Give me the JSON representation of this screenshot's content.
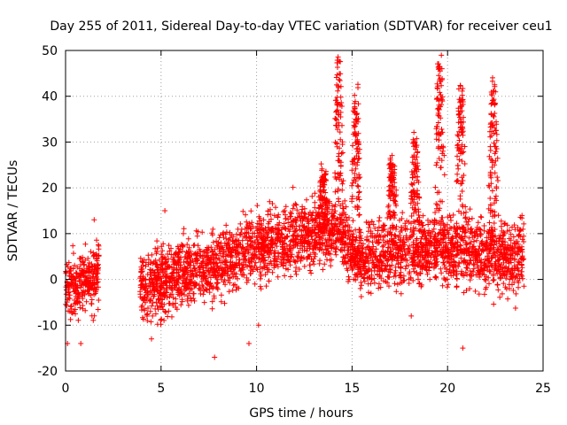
{
  "chart_data": {
    "type": "scatter",
    "title": "Day 255 of 2011, Sidereal Day-to-day VTEC variation (SDTVAR) for receiver ceu1",
    "xlabel": "GPS time / hours",
    "ylabel": "SDTVAR / TECUs",
    "xlim": [
      0,
      25
    ],
    "ylim": [
      -20,
      50
    ],
    "xticks": [
      0,
      5,
      10,
      15,
      20,
      25
    ],
    "yticks": [
      -20,
      -10,
      0,
      10,
      20,
      30,
      40,
      50
    ],
    "grid": true,
    "marker": "+",
    "color": "#ff0000",
    "series": [
      {
        "name": "SDTVAR",
        "segments": [
          {
            "x_start": 0.0,
            "x_end": 1.75,
            "center": [
              [
                0,
                -2
              ],
              [
                0.5,
                -1
              ],
              [
                1.0,
                0
              ],
              [
                1.5,
                1
              ],
              [
                1.75,
                2
              ]
            ],
            "spread": 3.5
          },
          {
            "x_start": 3.9,
            "x_end": 24.0,
            "center": [
              [
                3.9,
                -2
              ],
              [
                5,
                0
              ],
              [
                7,
                2
              ],
              [
                9,
                5
              ],
              [
                10,
                7
              ],
              [
                11,
                8
              ],
              [
                12,
                9
              ],
              [
                13,
                10
              ],
              [
                14,
                11
              ],
              [
                14.5,
                10
              ],
              [
                15,
                6
              ],
              [
                16,
                5
              ],
              [
                17,
                6
              ],
              [
                18,
                6
              ],
              [
                19,
                7
              ],
              [
                20,
                7
              ],
              [
                21,
                6
              ],
              [
                22,
                5
              ],
              [
                23,
                5
              ],
              [
                24,
                5
              ]
            ],
            "spread": 4
          }
        ],
        "spikes": [
          {
            "x": 13.5,
            "peak": 24
          },
          {
            "x": 14.3,
            "peak": 49
          },
          {
            "x": 15.2,
            "peak": 39
          },
          {
            "x": 17.1,
            "peak": 26
          },
          {
            "x": 18.3,
            "peak": 30
          },
          {
            "x": 19.6,
            "peak": 48
          },
          {
            "x": 20.7,
            "peak": 42
          },
          {
            "x": 22.4,
            "peak": 43
          }
        ],
        "outliers": [
          [
            0.1,
            -14
          ],
          [
            0.8,
            -14
          ],
          [
            1.5,
            13
          ],
          [
            4.5,
            -13
          ],
          [
            5.2,
            15
          ],
          [
            7.8,
            -17
          ],
          [
            9.6,
            -14
          ],
          [
            10.1,
            -10
          ],
          [
            20.8,
            -15
          ],
          [
            18.1,
            -8
          ]
        ]
      }
    ]
  }
}
